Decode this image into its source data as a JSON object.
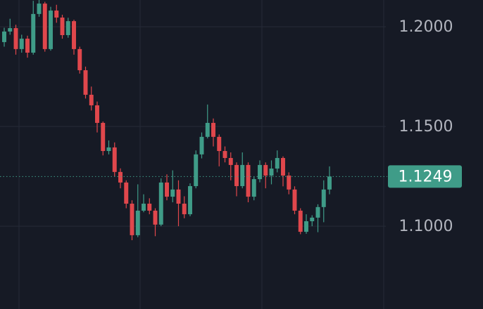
{
  "chart_data": {
    "type": "candlestick",
    "ylim": [
      1.0585,
      1.2134
    ],
    "yticks": [
      {
        "value": 1.1,
        "label": "1.1000"
      },
      {
        "value": 1.15,
        "label": "1.1500"
      },
      {
        "value": 1.2,
        "label": "1.2000"
      }
    ],
    "grid": true,
    "up_color": "#3f9c88",
    "down_color": "#e0474c",
    "last_price": {
      "value": 1.1249,
      "label": "1.1249"
    },
    "open": [
      1.1923,
      1.1976,
      1.1993,
      1.1888,
      1.194,
      1.187,
      1.2064,
      1.2116,
      1.1888,
      1.2081,
      1.2046,
      1.1958,
      1.2028,
      1.1888,
      1.1782,
      1.1659,
      1.1606,
      1.1518,
      1.1377,
      1.1395,
      1.1272,
      1.1219,
      1.1113,
      1.0955,
      1.1078,
      1.1113,
      1.1078,
      1.1008,
      1.1219,
      1.1148,
      1.1184,
      1.1113,
      1.106,
      1.1201,
      1.136,
      1.1448,
      1.1518,
      1.1448,
      1.1377,
      1.1342,
      1.1307,
      1.1201,
      1.1307,
      1.1148,
      1.1236,
      1.1307,
      1.1254,
      1.1289,
      1.1342,
      1.1254,
      1.1184,
      1.1078,
      1.0972,
      1.1025,
      1.1043,
      1.1096,
      1.1184
    ],
    "high": [
      1.1995,
      1.204,
      1.201,
      1.196,
      1.1955,
      1.213,
      1.2134,
      1.2125,
      1.21,
      1.211,
      1.206,
      1.2045,
      1.2035,
      1.19,
      1.18,
      1.17,
      1.1625,
      1.1525,
      1.143,
      1.142,
      1.129,
      1.123,
      1.113,
      1.121,
      1.116,
      1.114,
      1.109,
      1.124,
      1.126,
      1.128,
      1.123,
      1.115,
      1.1215,
      1.138,
      1.147,
      1.161,
      1.154,
      1.146,
      1.14,
      1.137,
      1.132,
      1.137,
      1.132,
      1.125,
      1.133,
      1.132,
      1.133,
      1.138,
      1.135,
      1.127,
      1.12,
      1.109,
      1.106,
      1.1055,
      1.111,
      1.123,
      1.13
    ],
    "low": [
      1.19,
      1.196,
      1.186,
      1.187,
      1.1845,
      1.186,
      1.205,
      1.1875,
      1.188,
      1.202,
      1.194,
      1.1945,
      1.186,
      1.1765,
      1.164,
      1.158,
      1.147,
      1.1355,
      1.136,
      1.125,
      1.119,
      1.109,
      1.093,
      1.0945,
      1.107,
      1.106,
      1.095,
      1.1,
      1.113,
      1.112,
      1.1,
      1.104,
      1.105,
      1.119,
      1.134,
      1.144,
      1.14,
      1.13,
      1.132,
      1.123,
      1.115,
      1.119,
      1.112,
      1.113,
      1.122,
      1.119,
      1.121,
      1.127,
      1.12,
      1.116,
      1.106,
      1.096,
      1.0962,
      1.1,
      1.097,
      1.102,
      1.116
    ],
    "close": [
      1.1976,
      1.1993,
      1.1888,
      1.194,
      1.187,
      1.2064,
      1.2116,
      1.1888,
      1.2081,
      1.2046,
      1.1958,
      1.2028,
      1.1888,
      1.1782,
      1.1659,
      1.1606,
      1.1518,
      1.1377,
      1.1395,
      1.1272,
      1.1219,
      1.1113,
      1.0955,
      1.1078,
      1.1113,
      1.1078,
      1.1008,
      1.1219,
      1.1148,
      1.1184,
      1.1113,
      1.106,
      1.1201,
      1.136,
      1.1448,
      1.1518,
      1.1448,
      1.1377,
      1.1342,
      1.1307,
      1.1201,
      1.1307,
      1.1148,
      1.1236,
      1.1307,
      1.1254,
      1.1289,
      1.1342,
      1.1254,
      1.1184,
      1.1078,
      1.0972,
      1.1025,
      1.1043,
      1.1096,
      1.1184,
      1.1249
    ]
  }
}
